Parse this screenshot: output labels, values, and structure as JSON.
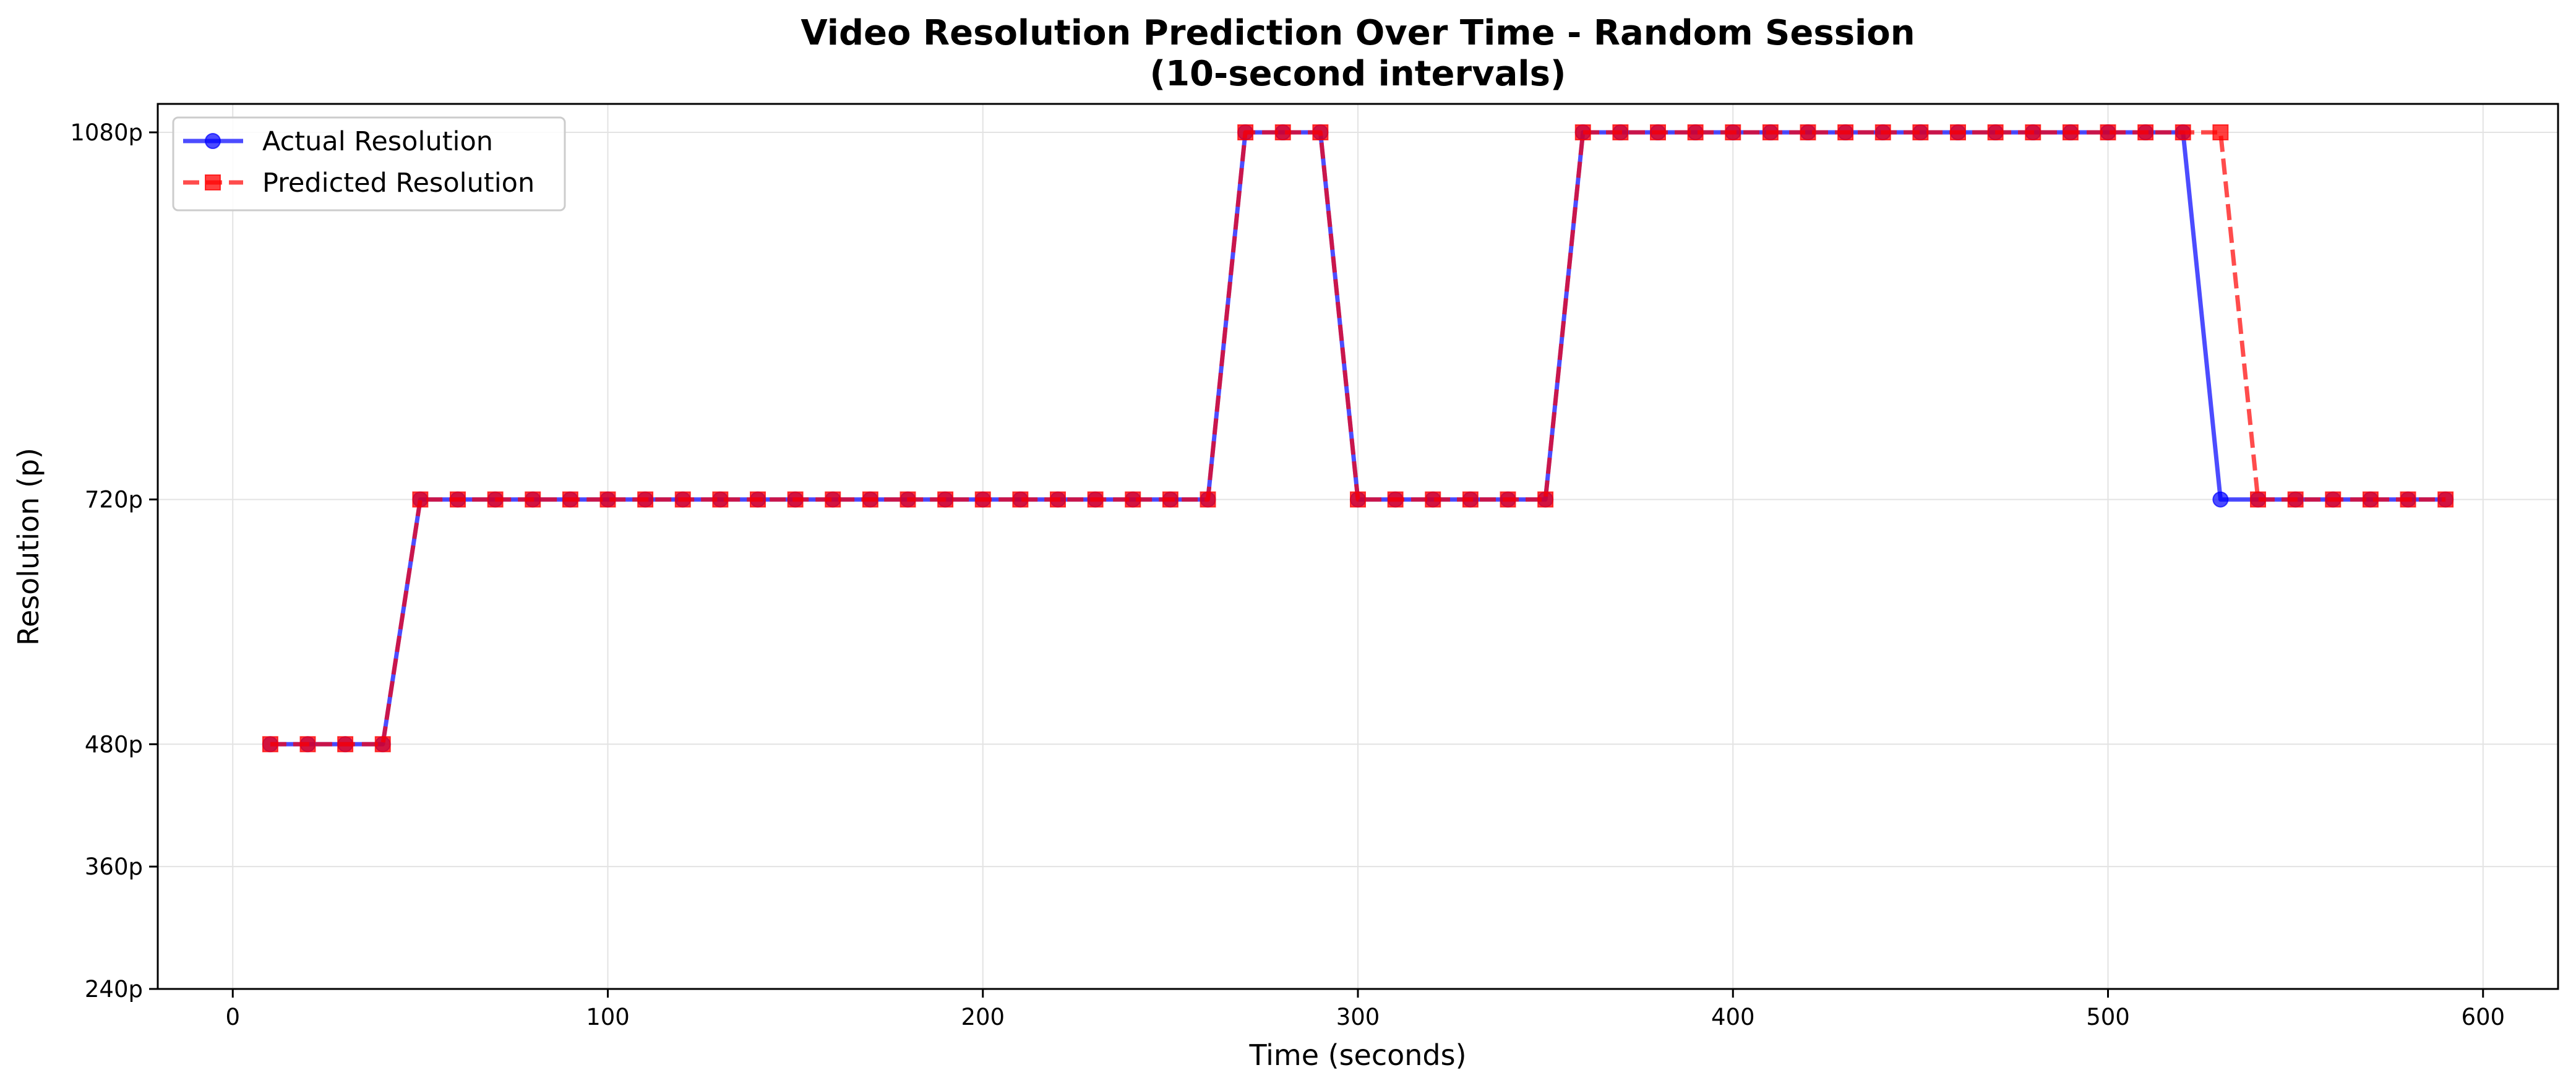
{
  "chart_data": {
    "type": "line",
    "title": "Video Resolution Prediction Over Time - Random Session",
    "subtitle": "(10-second intervals)",
    "xlabel": "Time (seconds)",
    "ylabel": "Resolution (p)",
    "xlim": [
      -20,
      620
    ],
    "ylim": [
      240,
      1080
    ],
    "x_ticks": [
      0,
      100,
      200,
      300,
      400,
      500,
      600
    ],
    "x_tick_labels": [
      "0",
      "100",
      "200",
      "300",
      "400",
      "500",
      "600"
    ],
    "y_ticks": [
      240,
      360,
      480,
      720,
      1080
    ],
    "y_tick_labels": [
      "240p",
      "360p",
      "480p",
      "720p",
      "1080p"
    ],
    "grid": true,
    "legend_position": "top-left",
    "x": [
      10,
      20,
      30,
      40,
      50,
      60,
      70,
      80,
      90,
      100,
      110,
      120,
      130,
      140,
      150,
      160,
      170,
      180,
      190,
      200,
      210,
      220,
      230,
      240,
      250,
      260,
      270,
      280,
      290,
      300,
      310,
      320,
      330,
      340,
      350,
      360,
      370,
      380,
      390,
      400,
      410,
      420,
      430,
      440,
      450,
      460,
      470,
      480,
      490,
      500,
      510,
      520,
      530,
      540,
      550,
      560,
      570,
      580,
      590
    ],
    "series": [
      {
        "name": "Actual Resolution",
        "color": "#0000ff",
        "marker": "circle",
        "line_style": "solid",
        "values": [
          480,
          480,
          480,
          480,
          720,
          720,
          720,
          720,
          720,
          720,
          720,
          720,
          720,
          720,
          720,
          720,
          720,
          720,
          720,
          720,
          720,
          720,
          720,
          720,
          720,
          720,
          1080,
          1080,
          1080,
          720,
          720,
          720,
          720,
          720,
          720,
          1080,
          1080,
          1080,
          1080,
          1080,
          1080,
          1080,
          1080,
          1080,
          1080,
          1080,
          1080,
          1080,
          1080,
          1080,
          1080,
          1080,
          720,
          720,
          720,
          720,
          720,
          720,
          720
        ]
      },
      {
        "name": "Predicted Resolution",
        "color": "#ff0000",
        "marker": "square",
        "line_style": "dashed",
        "values": [
          480,
          480,
          480,
          480,
          720,
          720,
          720,
          720,
          720,
          720,
          720,
          720,
          720,
          720,
          720,
          720,
          720,
          720,
          720,
          720,
          720,
          720,
          720,
          720,
          720,
          720,
          1080,
          1080,
          1080,
          720,
          720,
          720,
          720,
          720,
          720,
          1080,
          1080,
          1080,
          1080,
          1080,
          1080,
          1080,
          1080,
          1080,
          1080,
          1080,
          1080,
          1080,
          1080,
          1080,
          1080,
          1080,
          1080,
          720,
          720,
          720,
          720,
          720,
          720
        ]
      }
    ]
  }
}
